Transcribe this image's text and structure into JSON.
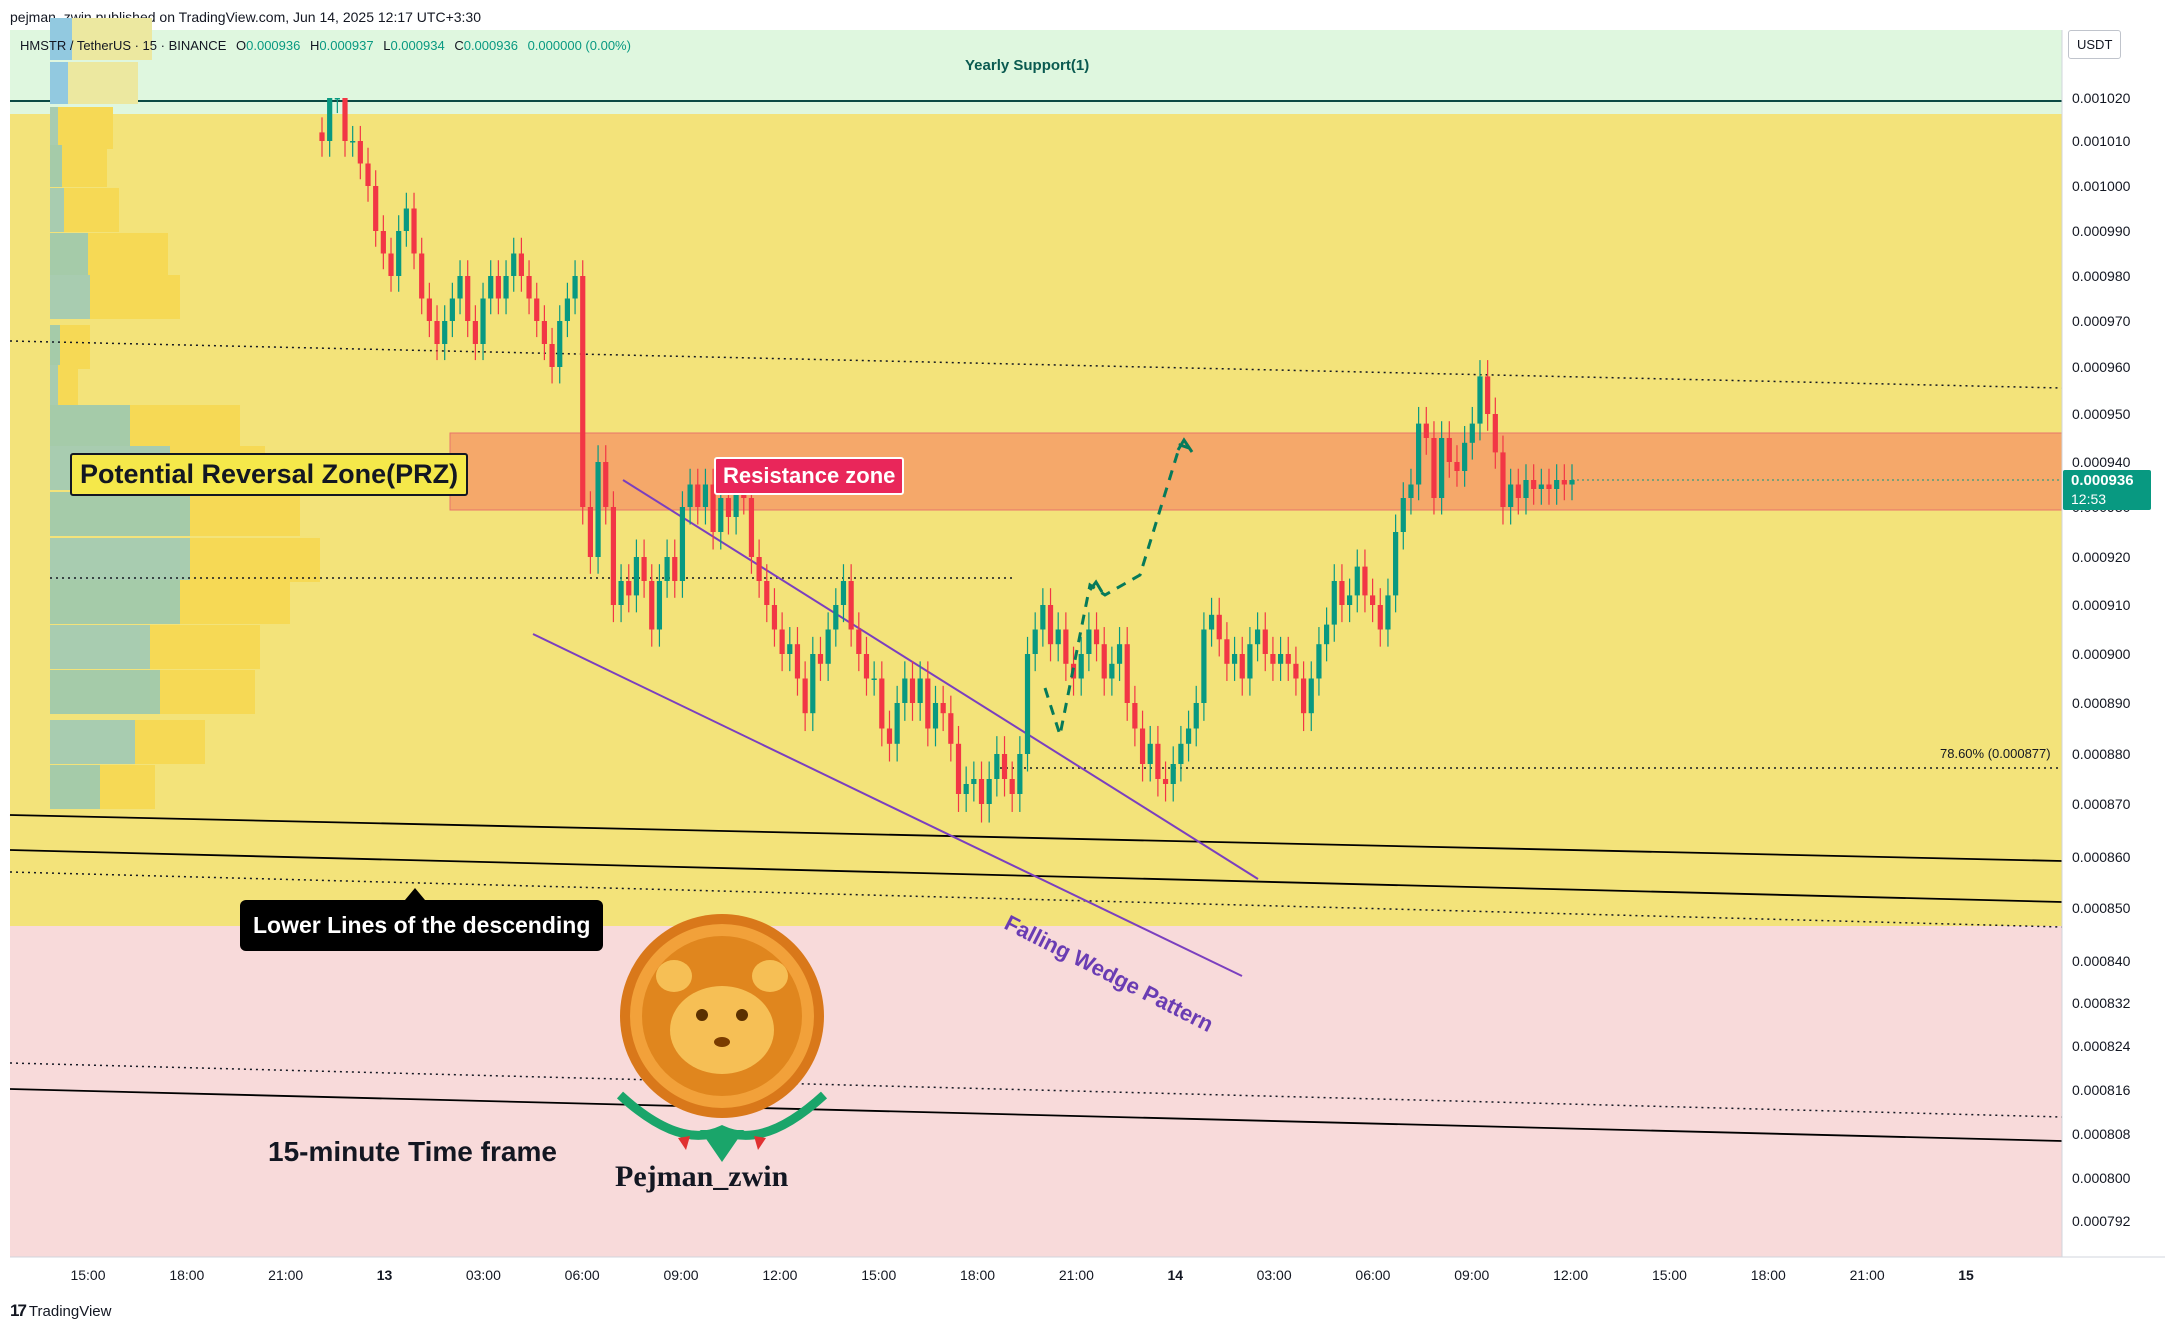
{
  "header": {
    "published": "pejman_zwin published on TradingView.com, Jun 14, 2025 12:17 UTC+3:30"
  },
  "legend": {
    "symbol": "HMSTR / TetherUS · 15 · BINANCE",
    "open_label": "O",
    "open": "0.000936",
    "high_label": "H",
    "high": "0.000937",
    "low_label": "L",
    "low": "0.000934",
    "close_label": "C",
    "close": "0.000936",
    "change": "0.000000 (0.00%)"
  },
  "annotations": {
    "prz": "Potential Reversal Zone(PRZ)",
    "resistance": "Resistance zone",
    "yearly_support": "Yearly Support(1)",
    "lower_lines": "Lower Lines of the descending",
    "falling_wedge": "Falling Wedge Pattern",
    "timeframe": "15-minute Time frame",
    "brand": "Pejman_zwin",
    "fib": "78.60% (0.000877)"
  },
  "price_axis": {
    "unit": "USDT",
    "last_price": "0.000936",
    "countdown": "12:53"
  },
  "footer": {
    "logo": "TradingView"
  },
  "colors": {
    "bull": "#089981",
    "bear": "#f23645",
    "resistance_zone": "#f5a86a",
    "prz_band": "#f3e37a",
    "support_band": "#dff7df",
    "lower_band": "#f8dada",
    "wedge": "#7b3fbf",
    "label_prz_bg": "#f5e84a",
    "label_resistance_bg": "#e9265a"
  },
  "chart_data": {
    "type": "candlestick",
    "symbol": "HMSTR / TetherUS",
    "interval": "15",
    "exchange": "BINANCE",
    "y_ticks": [
      0.00102,
      0.00101,
      0.001,
      0.00099,
      0.00098,
      0.00097,
      0.00096,
      0.00095,
      0.00094,
      0.00093,
      0.00092,
      0.00091,
      0.0009,
      0.00089,
      0.00088,
      0.00087,
      0.00086,
      0.00085,
      0.00084,
      0.000832,
      0.000824,
      0.000816,
      0.000808,
      0.0008,
      0.000792
    ],
    "y_tick_labels": [
      "0.001020",
      "0.001010",
      "0.001000",
      "0.000990",
      "0.000980",
      "0.000970",
      "0.000960",
      "0.000950",
      "0.000940",
      "0.000930",
      "0.000920",
      "0.000910",
      "0.000900",
      "0.000890",
      "0.000880",
      "0.000870",
      "0.000860",
      "0.000850",
      "0.000840",
      "0.000832",
      "0.000824",
      "0.000816",
      "0.000808",
      "0.000800",
      "0.000792"
    ],
    "x_tick_labels": [
      "15:00",
      "18:00",
      "21:00",
      "13",
      "03:00",
      "06:00",
      "09:00",
      "12:00",
      "15:00",
      "18:00",
      "21:00",
      "14",
      "03:00",
      "06:00",
      "09:00",
      "12:00",
      "15:00",
      "18:00",
      "21:00",
      "15"
    ],
    "x_tick_hours": [
      15,
      18,
      21,
      24,
      27,
      30,
      33,
      36,
      39,
      42,
      45,
      48,
      51,
      54,
      57,
      60,
      63,
      66,
      69,
      72
    ],
    "zones": {
      "resistance": [
        0.00093,
        0.000946
      ],
      "yearly_support_line": 0.00102,
      "fib_786": 0.000877
    },
    "candles_close": [
      0.00101,
      0.00102,
      0.00102,
      0.00101,
      0.00101,
      0.001005,
      0.001,
      0.00099,
      0.000985,
      0.00098,
      0.00099,
      0.000995,
      0.000985,
      0.000975,
      0.00097,
      0.000965,
      0.00097,
      0.000975,
      0.00098,
      0.00097,
      0.000965,
      0.000975,
      0.00098,
      0.000975,
      0.00098,
      0.000985,
      0.00098,
      0.000975,
      0.00097,
      0.000965,
      0.00096,
      0.00097,
      0.000975,
      0.00098,
      0.00093,
      0.00092,
      0.00094,
      0.00093,
      0.00091,
      0.000915,
      0.000912,
      0.00092,
      0.000915,
      0.000905,
      0.000915,
      0.00092,
      0.000915,
      0.00093,
      0.000935,
      0.00093,
      0.000935,
      0.000925,
      0.000932,
      0.000928,
      0.000935,
      0.000932,
      0.00092,
      0.000915,
      0.00091,
      0.000905,
      0.0009,
      0.000902,
      0.000895,
      0.000888,
      0.0009,
      0.000898,
      0.000905,
      0.00091,
      0.000915,
      0.000905,
      0.0009,
      0.000895,
      0.000895,
      0.000885,
      0.000882,
      0.00089,
      0.000895,
      0.00089,
      0.000895,
      0.000885,
      0.00089,
      0.000888,
      0.000882,
      0.000872,
      0.000874,
      0.000875,
      0.00087,
      0.000875,
      0.00088,
      0.000875,
      0.000872,
      0.00088,
      0.0009,
      0.000905,
      0.00091,
      0.000902,
      0.000905,
      0.000898,
      0.000895,
      0.0009,
      0.000905,
      0.000902,
      0.000895,
      0.000898,
      0.000902,
      0.00089,
      0.000885,
      0.000878,
      0.000882,
      0.000875,
      0.000874,
      0.000878,
      0.000882,
      0.000885,
      0.00089,
      0.000905,
      0.000908,
      0.000903,
      0.000898,
      0.0009,
      0.000895,
      0.000902,
      0.000905,
      0.0009,
      0.000898,
      0.0009,
      0.000898,
      0.000895,
      0.000888,
      0.000895,
      0.000902,
      0.000906,
      0.000915,
      0.00091,
      0.000912,
      0.000918,
      0.000912,
      0.00091,
      0.000905,
      0.000912,
      0.000925,
      0.000932,
      0.000935,
      0.000948,
      0.000945,
      0.000932,
      0.000945,
      0.00094,
      0.000938,
      0.000944,
      0.000948,
      0.000958,
      0.00095,
      0.000942,
      0.00093,
      0.000935,
      0.000932,
      0.000936,
      0.000934,
      0.000935,
      0.000934,
      0.000936,
      0.000935,
      0.000936
    ]
  }
}
